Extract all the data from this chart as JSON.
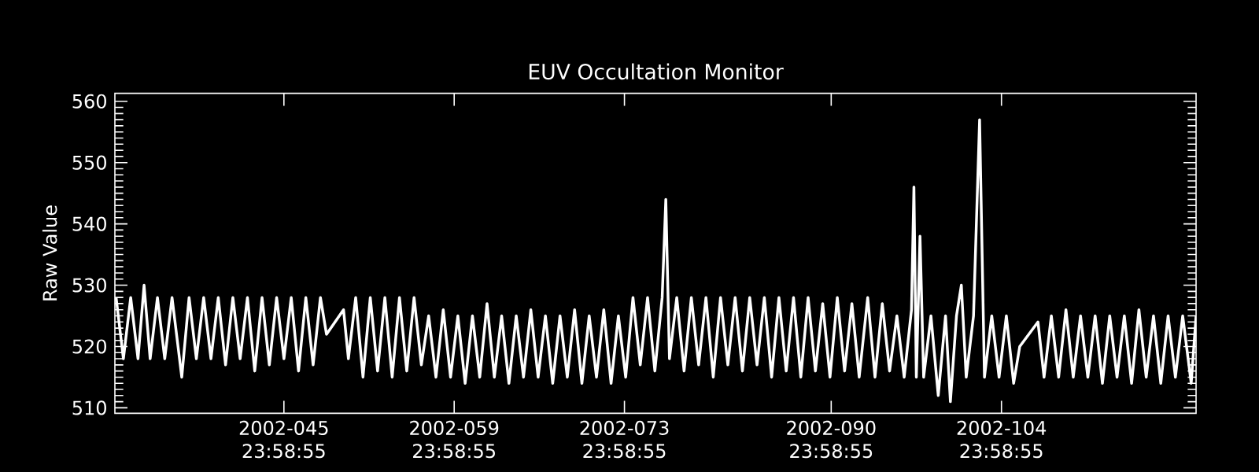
{
  "chart_data": {
    "type": "line",
    "title": "EUV Occultation Monitor",
    "ylabel": "Raw Value",
    "xlim": [
      "2002-02-01T02:24",
      "2002-05-01T00:00"
    ],
    "ylim": [
      509.1,
      561.3
    ],
    "xticks": [
      {
        "value": "2002-02-14T23:58",
        "label": "2002-045 23:58:55"
      },
      {
        "value": "2002-02-28T23:58",
        "label": "2002-059 23:58:55"
      },
      {
        "value": "2002-03-14T23:58",
        "label": "2002-073 23:58:55"
      },
      {
        "value": "2002-03-31T23:58",
        "label": "2002-090 23:58:55"
      },
      {
        "value": "2002-04-14T23:58",
        "label": "2002-104 23:58:55"
      }
    ],
    "yticks": [
      510,
      520,
      530,
      540,
      550,
      560
    ],
    "grid": false,
    "marker": "none",
    "line_style": "solid",
    "series": [
      {
        "color": "#ffffff",
        "x": [
          "2002-02-01T04:48",
          "2002-02-01T19:12",
          "2002-02-02T09:36",
          "2002-02-03T00:00",
          "2002-02-03T12:00",
          "2002-02-04T00:00",
          "2002-02-04T14:24",
          "2002-02-05T04:48",
          "2002-02-05T19:12",
          "2002-02-06T14:24",
          "2002-02-07T04:48",
          "2002-02-07T19:12",
          "2002-02-08T09:36",
          "2002-02-09T00:00",
          "2002-02-09T14:24",
          "2002-02-10T04:48",
          "2002-02-10T19:12",
          "2002-02-11T09:36",
          "2002-02-12T00:00",
          "2002-02-12T14:24",
          "2002-02-13T04:48",
          "2002-02-13T19:12",
          "2002-02-14T09:36",
          "2002-02-15T00:00",
          "2002-02-15T14:24",
          "2002-02-16T04:48",
          "2002-02-16T19:12",
          "2002-02-17T09:36",
          "2002-02-18T00:00",
          "2002-02-18T12:00",
          "2002-02-19T21:36",
          "2002-02-20T07:12",
          "2002-02-20T21:36",
          "2002-02-21T12:00",
          "2002-02-22T02:24",
          "2002-02-22T16:48",
          "2002-02-23T07:12",
          "2002-02-23T21:36",
          "2002-02-24T12:00",
          "2002-02-25T02:24",
          "2002-02-25T16:48",
          "2002-02-26T07:12",
          "2002-02-26T21:36",
          "2002-02-27T12:00",
          "2002-02-28T02:24",
          "2002-02-28T16:48",
          "2002-03-01T07:12",
          "2002-03-01T21:36",
          "2002-03-02T12:00",
          "2002-03-03T02:24",
          "2002-03-03T16:48",
          "2002-03-04T07:12",
          "2002-03-04T21:36",
          "2002-03-05T12:00",
          "2002-03-06T02:24",
          "2002-03-06T16:48",
          "2002-03-07T07:12",
          "2002-03-07T21:36",
          "2002-03-08T12:00",
          "2002-03-09T02:24",
          "2002-03-09T16:48",
          "2002-03-10T07:12",
          "2002-03-10T21:36",
          "2002-03-11T12:00",
          "2002-03-12T02:24",
          "2002-03-12T16:48",
          "2002-03-13T07:12",
          "2002-03-13T21:36",
          "2002-03-14T12:00",
          "2002-03-15T02:24",
          "2002-03-15T16:48",
          "2002-03-16T07:12",
          "2002-03-16T21:36",
          "2002-03-17T12:00",
          "2002-03-18T02:24",
          "2002-03-18T09:36",
          "2002-03-18T16:48",
          "2002-03-19T07:12",
          "2002-03-19T21:36",
          "2002-03-20T12:00",
          "2002-03-21T02:24",
          "2002-03-21T16:48",
          "2002-03-22T07:12",
          "2002-03-22T21:36",
          "2002-03-23T12:00",
          "2002-03-24T02:24",
          "2002-03-24T16:48",
          "2002-03-25T07:12",
          "2002-03-25T21:36",
          "2002-03-26T12:00",
          "2002-03-27T02:24",
          "2002-03-27T16:48",
          "2002-03-28T07:12",
          "2002-03-28T21:36",
          "2002-03-29T12:00",
          "2002-03-30T02:24",
          "2002-03-30T16:48",
          "2002-03-31T07:12",
          "2002-03-31T21:36",
          "2002-04-01T12:00",
          "2002-04-02T02:24",
          "2002-04-02T16:48",
          "2002-04-03T07:12",
          "2002-04-04T00:00",
          "2002-04-04T14:24",
          "2002-04-05T04:48",
          "2002-04-05T19:12",
          "2002-04-06T09:36",
          "2002-04-07T00:00",
          "2002-04-07T14:24",
          "2002-04-07T19:12",
          "2002-04-08T00:00",
          "2002-04-08T07:12",
          "2002-04-08T14:24",
          "2002-04-09T04:48",
          "2002-04-09T19:12",
          "2002-04-10T09:36",
          "2002-04-10T19:12",
          "2002-04-11T07:12",
          "2002-04-11T16:48",
          "2002-04-12T02:24",
          "2002-04-12T16:48",
          "2002-04-13T04:48",
          "2002-04-13T14:24",
          "2002-04-14T04:48",
          "2002-04-14T19:12",
          "2002-04-15T09:36",
          "2002-04-16T00:00",
          "2002-04-16T12:00",
          "2002-04-18T00:00",
          "2002-04-18T12:00",
          "2002-04-19T02:24",
          "2002-04-19T16:48",
          "2002-04-20T07:12",
          "2002-04-20T21:36",
          "2002-04-21T12:00",
          "2002-04-22T02:24",
          "2002-04-22T16:48",
          "2002-04-23T07:12",
          "2002-04-23T21:36",
          "2002-04-24T12:00",
          "2002-04-25T02:24",
          "2002-04-25T16:48",
          "2002-04-26T07:12",
          "2002-04-26T21:36",
          "2002-04-27T12:00",
          "2002-04-28T02:24",
          "2002-04-28T16:48",
          "2002-04-29T07:12",
          "2002-04-29T21:36",
          "2002-04-30T14:24",
          "2002-05-01T00:00"
        ],
        "values": [
          528,
          518,
          528,
          518,
          530,
          518,
          528,
          518,
          528,
          515,
          528,
          518,
          528,
          518,
          528,
          517,
          528,
          518,
          528,
          516,
          528,
          517,
          528,
          518,
          528,
          516,
          528,
          517,
          528,
          522,
          526,
          518,
          528,
          515,
          528,
          516,
          528,
          515,
          528,
          516,
          528,
          517,
          525,
          515,
          526,
          515,
          525,
          514,
          525,
          515,
          527,
          515,
          525,
          514,
          525,
          515,
          526,
          515,
          525,
          514,
          525,
          515,
          526,
          514,
          525,
          515,
          526,
          514,
          525,
          515,
          528,
          517,
          528,
          516,
          528,
          544,
          518,
          528,
          516,
          528,
          517,
          528,
          515,
          528,
          517,
          528,
          516,
          528,
          517,
          528,
          515,
          528,
          516,
          528,
          515,
          528,
          516,
          527,
          515,
          528,
          516,
          527,
          515,
          528,
          515,
          527,
          516,
          525,
          515,
          526,
          546,
          515,
          538,
          515,
          525,
          512,
          525,
          511,
          525,
          530,
          515,
          525,
          557,
          515,
          525,
          515,
          525,
          514,
          520,
          524,
          515,
          525,
          515,
          526,
          515,
          525,
          515,
          525,
          514,
          525,
          515,
          525,
          514,
          526,
          515,
          525,
          514,
          525,
          515,
          525,
          514,
          525
        ]
      }
    ]
  }
}
